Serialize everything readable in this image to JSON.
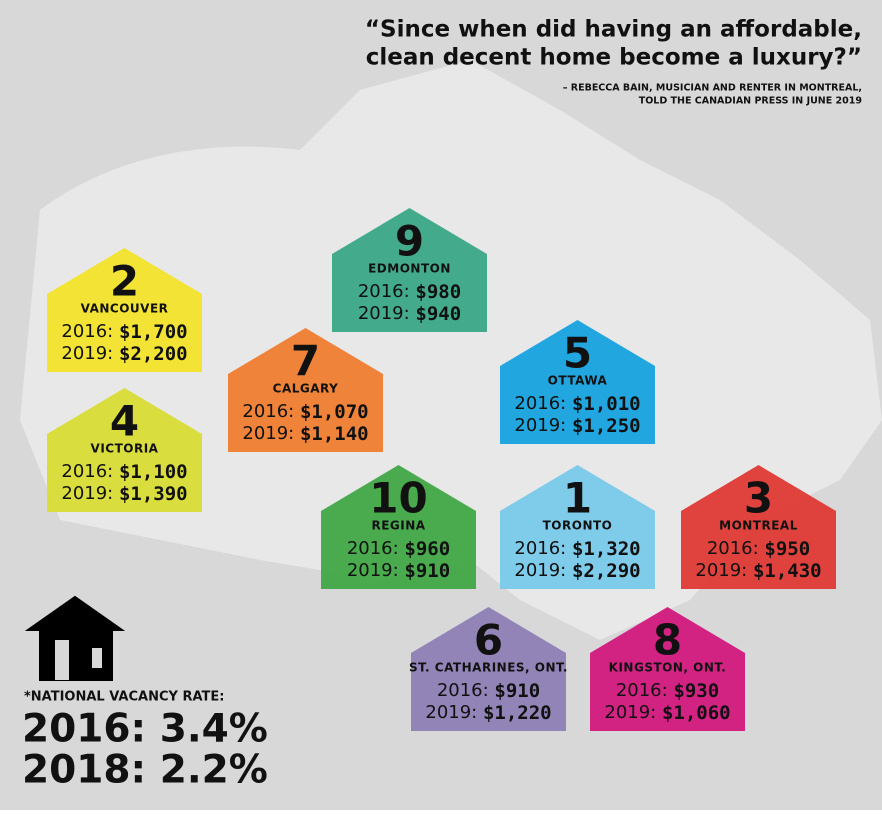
{
  "quote": {
    "lines": [
      "“Since when did having an affordable,",
      "clean decent home become a luxury?”"
    ],
    "attribution": [
      "– REBECCA BAIN, MUSICIAN AND RENTER IN MONTREAL,",
      "TOLD THE CANADIAN PRESS IN JUNE 2019"
    ]
  },
  "houses": [
    {
      "rank": "2",
      "city": "VANCOUVER",
      "color": "#f2e32b",
      "rows": [
        {
          "year": "2016:",
          "rent": "$1,700"
        },
        {
          "year": "2019:",
          "rent": "$2,200"
        }
      ]
    },
    {
      "rank": "4",
      "city": "VICTORIA",
      "color": "#d9dc35",
      "rows": [
        {
          "year": "2016:",
          "rent": "$1,100"
        },
        {
          "year": "2019:",
          "rent": "$1,390"
        }
      ]
    },
    {
      "rank": "9",
      "city": "EDMONTON",
      "color": "#3aa887",
      "rows": [
        {
          "year": "2016:",
          "rent": "$980"
        },
        {
          "year": "2019:",
          "rent": "$940"
        }
      ]
    },
    {
      "rank": "7",
      "city": "CALGARY",
      "color": "#ee7d2f",
      "rows": [
        {
          "year": "2016:",
          "rent": "$1,070"
        },
        {
          "year": "2019:",
          "rent": "$1,140"
        }
      ]
    },
    {
      "rank": "5",
      "city": "OTTAWA",
      "color": "#16a2df",
      "rows": [
        {
          "year": "2016:",
          "rent": "$1,010"
        },
        {
          "year": "2019:",
          "rent": "$1,250"
        }
      ]
    },
    {
      "rank": "10",
      "city": "REGINA",
      "color": "#40a846",
      "rows": [
        {
          "year": "2016:",
          "rent": "$960"
        },
        {
          "year": "2019:",
          "rent": "$910"
        }
      ]
    },
    {
      "rank": "1",
      "city": "TORONTO",
      "color": "#79c9ea",
      "rows": [
        {
          "year": "2016:",
          "rent": "$1,320"
        },
        {
          "year": "2019:",
          "rent": "$2,290"
        }
      ]
    },
    {
      "rank": "3",
      "city": "MONTREAL",
      "color": "#df3a34",
      "rows": [
        {
          "year": "2016:",
          "rent": "$950"
        },
        {
          "year": "2019:",
          "rent": "$1,430"
        }
      ]
    },
    {
      "rank": "6",
      "city": "ST. CATHARINES, ONT.",
      "color": "#8e80b5",
      "rows": [
        {
          "year": "2016:",
          "rent": "$910"
        },
        {
          "year": "2019:",
          "rent": "$1,220"
        }
      ]
    },
    {
      "rank": "8",
      "city": "KINGSTON, ONT.",
      "color": "#d2197e",
      "rows": [
        {
          "year": "2016:",
          "rent": "$930"
        },
        {
          "year": "2019:",
          "rent": "$1,060"
        }
      ]
    }
  ],
  "vacancy": {
    "label": "*NATIONAL VACANCY RATE:",
    "lines": [
      "2016: 3.4%",
      "2018: 2.2%"
    ]
  }
}
